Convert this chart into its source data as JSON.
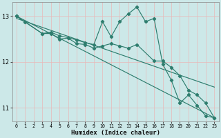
{
  "xlabel": "Humidex (Indice chaleur)",
  "bg_color": "#cce8e8",
  "grid_color": "#b0d8d8",
  "line_color": "#2e7d6e",
  "xlim": [
    -0.5,
    23.5
  ],
  "ylim": [
    10.7,
    13.3
  ],
  "yticks": [
    11,
    12,
    13
  ],
  "xticks": [
    0,
    1,
    2,
    3,
    4,
    5,
    6,
    7,
    8,
    9,
    10,
    11,
    12,
    13,
    14,
    15,
    16,
    17,
    18,
    19,
    20,
    21,
    22,
    23
  ],
  "line1_x": [
    0,
    1,
    3,
    4,
    5,
    6,
    7,
    8,
    9,
    10,
    11,
    12,
    13,
    14,
    15,
    16,
    17,
    18,
    19,
    20,
    21,
    22,
    23
  ],
  "line1_y": [
    13.0,
    12.87,
    12.62,
    12.65,
    12.57,
    12.53,
    12.48,
    12.42,
    12.38,
    12.88,
    12.55,
    12.88,
    13.05,
    13.2,
    12.88,
    12.95,
    11.95,
    11.6,
    11.1,
    11.28,
    11.05,
    10.82,
    10.78
  ],
  "line2_x": [
    0,
    3,
    4,
    5,
    6,
    7,
    8,
    9,
    10,
    11,
    12,
    13,
    14,
    16,
    17,
    18,
    19,
    20,
    21,
    22,
    23
  ],
  "line2_y": [
    13.0,
    12.62,
    12.62,
    12.5,
    12.52,
    12.4,
    12.38,
    12.3,
    12.35,
    12.4,
    12.35,
    12.3,
    12.38,
    12.02,
    12.02,
    11.88,
    11.7,
    11.38,
    11.28,
    11.1,
    10.78
  ],
  "line3_x": [
    0,
    23
  ],
  "line3_y": [
    13.0,
    10.78
  ],
  "line4_x": [
    0,
    23
  ],
  "line4_y": [
    12.95,
    11.45
  ]
}
